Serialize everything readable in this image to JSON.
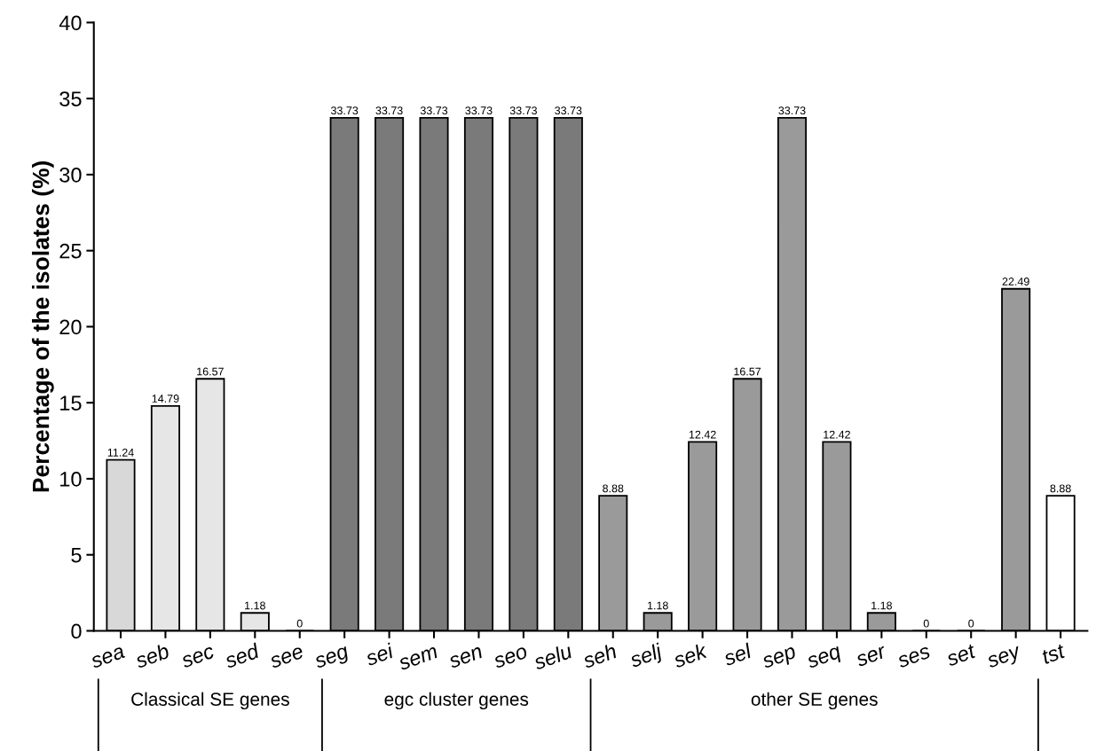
{
  "chart_data": {
    "type": "bar",
    "ylabel": "Percentage of the isolates (%)",
    "categories": [
      "sea",
      "seb",
      "sec",
      "sed",
      "see",
      "seg",
      "sei",
      "sem",
      "sen",
      "seo",
      "selu",
      "seh",
      "selj",
      "sek",
      "sel",
      "sep",
      "seq",
      "ser",
      "ses",
      "set",
      "sey",
      "tst"
    ],
    "values": [
      11.24,
      14.79,
      16.57,
      1.18,
      0,
      33.73,
      33.73,
      33.73,
      33.73,
      33.73,
      33.73,
      8.88,
      1.18,
      12.42,
      16.57,
      33.73,
      12.42,
      1.18,
      0,
      0,
      22.49,
      8.88
    ],
    "colors": [
      "#d8d8d8",
      "#e6e6e6",
      "#e6e6e6",
      "#e6e6e6",
      "#e6e6e6",
      "#7a7a7a",
      "#7a7a7a",
      "#7a7a7a",
      "#7a7a7a",
      "#7a7a7a",
      "#7a7a7a",
      "#9a9a9a",
      "#9a9a9a",
      "#9a9a9a",
      "#9a9a9a",
      "#9a9a9a",
      "#9a9a9a",
      "#9a9a9a",
      "#9a9a9a",
      "#9a9a9a",
      "#9a9a9a",
      "#ffffff"
    ],
    "ylim": [
      0,
      40
    ],
    "yticks": [
      0,
      5,
      10,
      15,
      20,
      25,
      30,
      35,
      40
    ],
    "grid": false,
    "data_labels": true,
    "annotations": [
      "Classical SE genes",
      "egc cluster genes",
      "other SE genes"
    ]
  }
}
